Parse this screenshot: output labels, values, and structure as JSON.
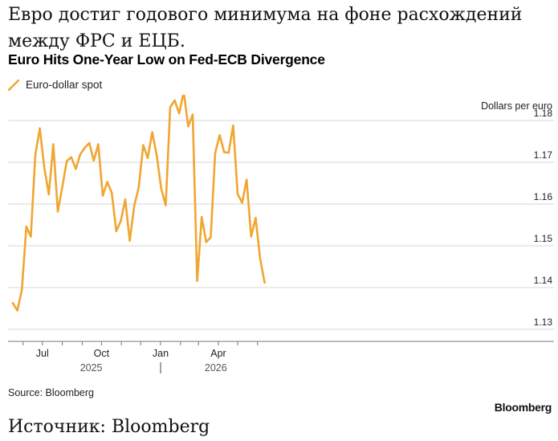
{
  "headline_ru": "Евро достиг годового минимума на фоне расхождений между ФРС и ЕЦБ.",
  "title": "Euro Hits One-Year Low on Fed-ECB Divergence",
  "source": "Source: Bloomberg",
  "brand": "Bloomberg",
  "source_ru": "Источник: Bloomberg",
  "colors": {
    "line": "#f0a630",
    "grid": "#d7d7d7",
    "axis": "#777777"
  },
  "chart_data": {
    "type": "line",
    "title": "Euro Hits One-Year Low on Fed-ECB Divergence",
    "ylabel": "Dollars per euro",
    "ylim": [
      1.13,
      1.18
    ],
    "yticks": [
      1.13,
      1.14,
      1.15,
      1.16,
      1.17,
      1.18
    ],
    "x_tick_labels": [
      "Jul",
      "Oct",
      "Jan",
      "Apr"
    ],
    "x_year_labels": [
      "2025",
      "2026"
    ],
    "legend": "top-left",
    "grid": true,
    "series": [
      {
        "name": "Euro-dollar spot",
        "x": [
          "2025-05-16",
          "2025-05-23",
          "2025-05-30",
          "2025-06-06",
          "2025-06-13",
          "2025-06-20",
          "2025-06-27",
          "2025-07-04",
          "2025-07-11",
          "2025-07-18",
          "2025-07-25",
          "2025-08-01",
          "2025-08-08",
          "2025-08-15",
          "2025-08-22",
          "2025-08-29",
          "2025-09-05",
          "2025-09-12",
          "2025-09-19",
          "2025-09-26",
          "2025-10-03",
          "2025-10-10",
          "2025-10-17",
          "2025-10-24",
          "2025-10-31",
          "2025-11-07",
          "2025-11-14",
          "2025-11-21",
          "2025-11-28",
          "2025-12-05",
          "2025-12-12",
          "2025-12-19",
          "2025-12-26",
          "2026-01-02",
          "2026-01-09",
          "2026-01-16",
          "2026-01-23",
          "2026-01-30",
          "2026-02-06",
          "2026-02-13",
          "2026-02-20",
          "2026-02-27",
          "2026-03-06",
          "2026-03-13",
          "2026-03-20",
          "2026-03-27",
          "2026-04-03",
          "2026-04-10",
          "2026-04-17",
          "2026-04-24",
          "2026-05-01",
          "2026-05-08",
          "2026-05-15",
          "2026-05-22",
          "2026-05-29",
          "2026-06-05",
          "2026-06-12"
        ],
        "values": [
          1.1363,
          1.1345,
          1.1394,
          1.1546,
          1.1522,
          1.1718,
          1.1781,
          1.1687,
          1.1623,
          1.1743,
          1.1582,
          1.1641,
          1.1703,
          1.1712,
          1.1684,
          1.1719,
          1.1735,
          1.1746,
          1.1704,
          1.1743,
          1.162,
          1.1653,
          1.1627,
          1.1535,
          1.1559,
          1.1611,
          1.1512,
          1.1596,
          1.164,
          1.1741,
          1.171,
          1.1772,
          1.1717,
          1.1637,
          1.1597,
          1.1832,
          1.1848,
          1.1817,
          1.1869,
          1.1786,
          1.1814,
          1.1416,
          1.1569,
          1.1509,
          1.152,
          1.1722,
          1.1765,
          1.1724,
          1.1723,
          1.1788,
          1.1624,
          1.1603,
          1.1658,
          1.1522,
          1.1567,
          1.1469,
          1.1412
        ]
      }
    ]
  }
}
